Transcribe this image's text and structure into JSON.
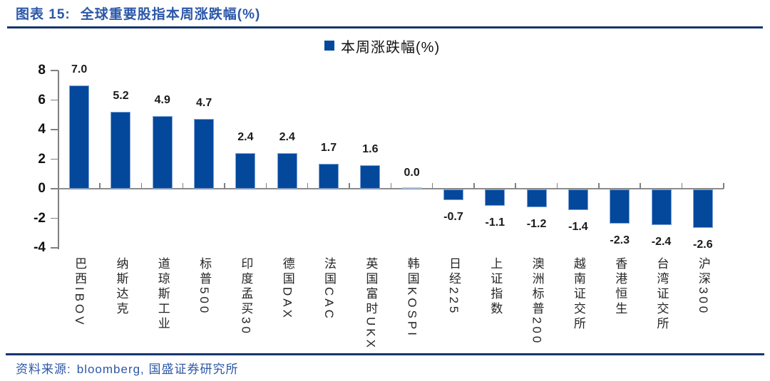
{
  "header": {
    "figure_label": "图表 15:",
    "title": "全球重要股指本周涨跌幅(%)"
  },
  "legend": {
    "label": "本周涨跌幅(%)"
  },
  "footer": {
    "source_label": "资料来源:",
    "source_detail": "bloomberg, 国盛证券研究所"
  },
  "colors": {
    "bar": "#04489C",
    "bar_edge": "#7FA3D6",
    "accent_blue": "#2B57A8",
    "rule_navy": "#17356E",
    "axis_gray": "#808080"
  },
  "chart_data": {
    "type": "bar",
    "title": "全球重要股指本周涨跌幅(%)",
    "legend_entries": [
      "本周涨跌幅(%)"
    ],
    "legend_position": "top-center",
    "grid": false,
    "categories": [
      "巴西IBOV",
      "纳斯达克",
      "道琼斯工业",
      "标普500",
      "印度孟买30",
      "德国DAX",
      "法国CAC",
      "英国富时UKX",
      "韩国KOSPI",
      "日经225",
      "上证指数",
      "澳洲标普200",
      "越南证交所",
      "香港恒生",
      "台湾证交所",
      "沪深300"
    ],
    "values": [
      7.0,
      5.2,
      4.9,
      4.7,
      2.4,
      2.4,
      1.7,
      1.6,
      0.0,
      -0.7,
      -1.1,
      -1.2,
      -1.4,
      -2.3,
      -2.4,
      -2.6
    ],
    "value_labels": [
      "7.0",
      "5.2",
      "4.9",
      "4.7",
      "2.4",
      "2.4",
      "1.7",
      "1.6",
      "0.0",
      "-0.7",
      "-1.1",
      "-1.2",
      "-1.4",
      "-2.3",
      "-2.4",
      "-2.6"
    ],
    "ylim": [
      -4,
      8
    ],
    "yticks": [
      8,
      6,
      4,
      2,
      0,
      -2,
      -4
    ],
    "xlabel": "",
    "ylabel": ""
  }
}
